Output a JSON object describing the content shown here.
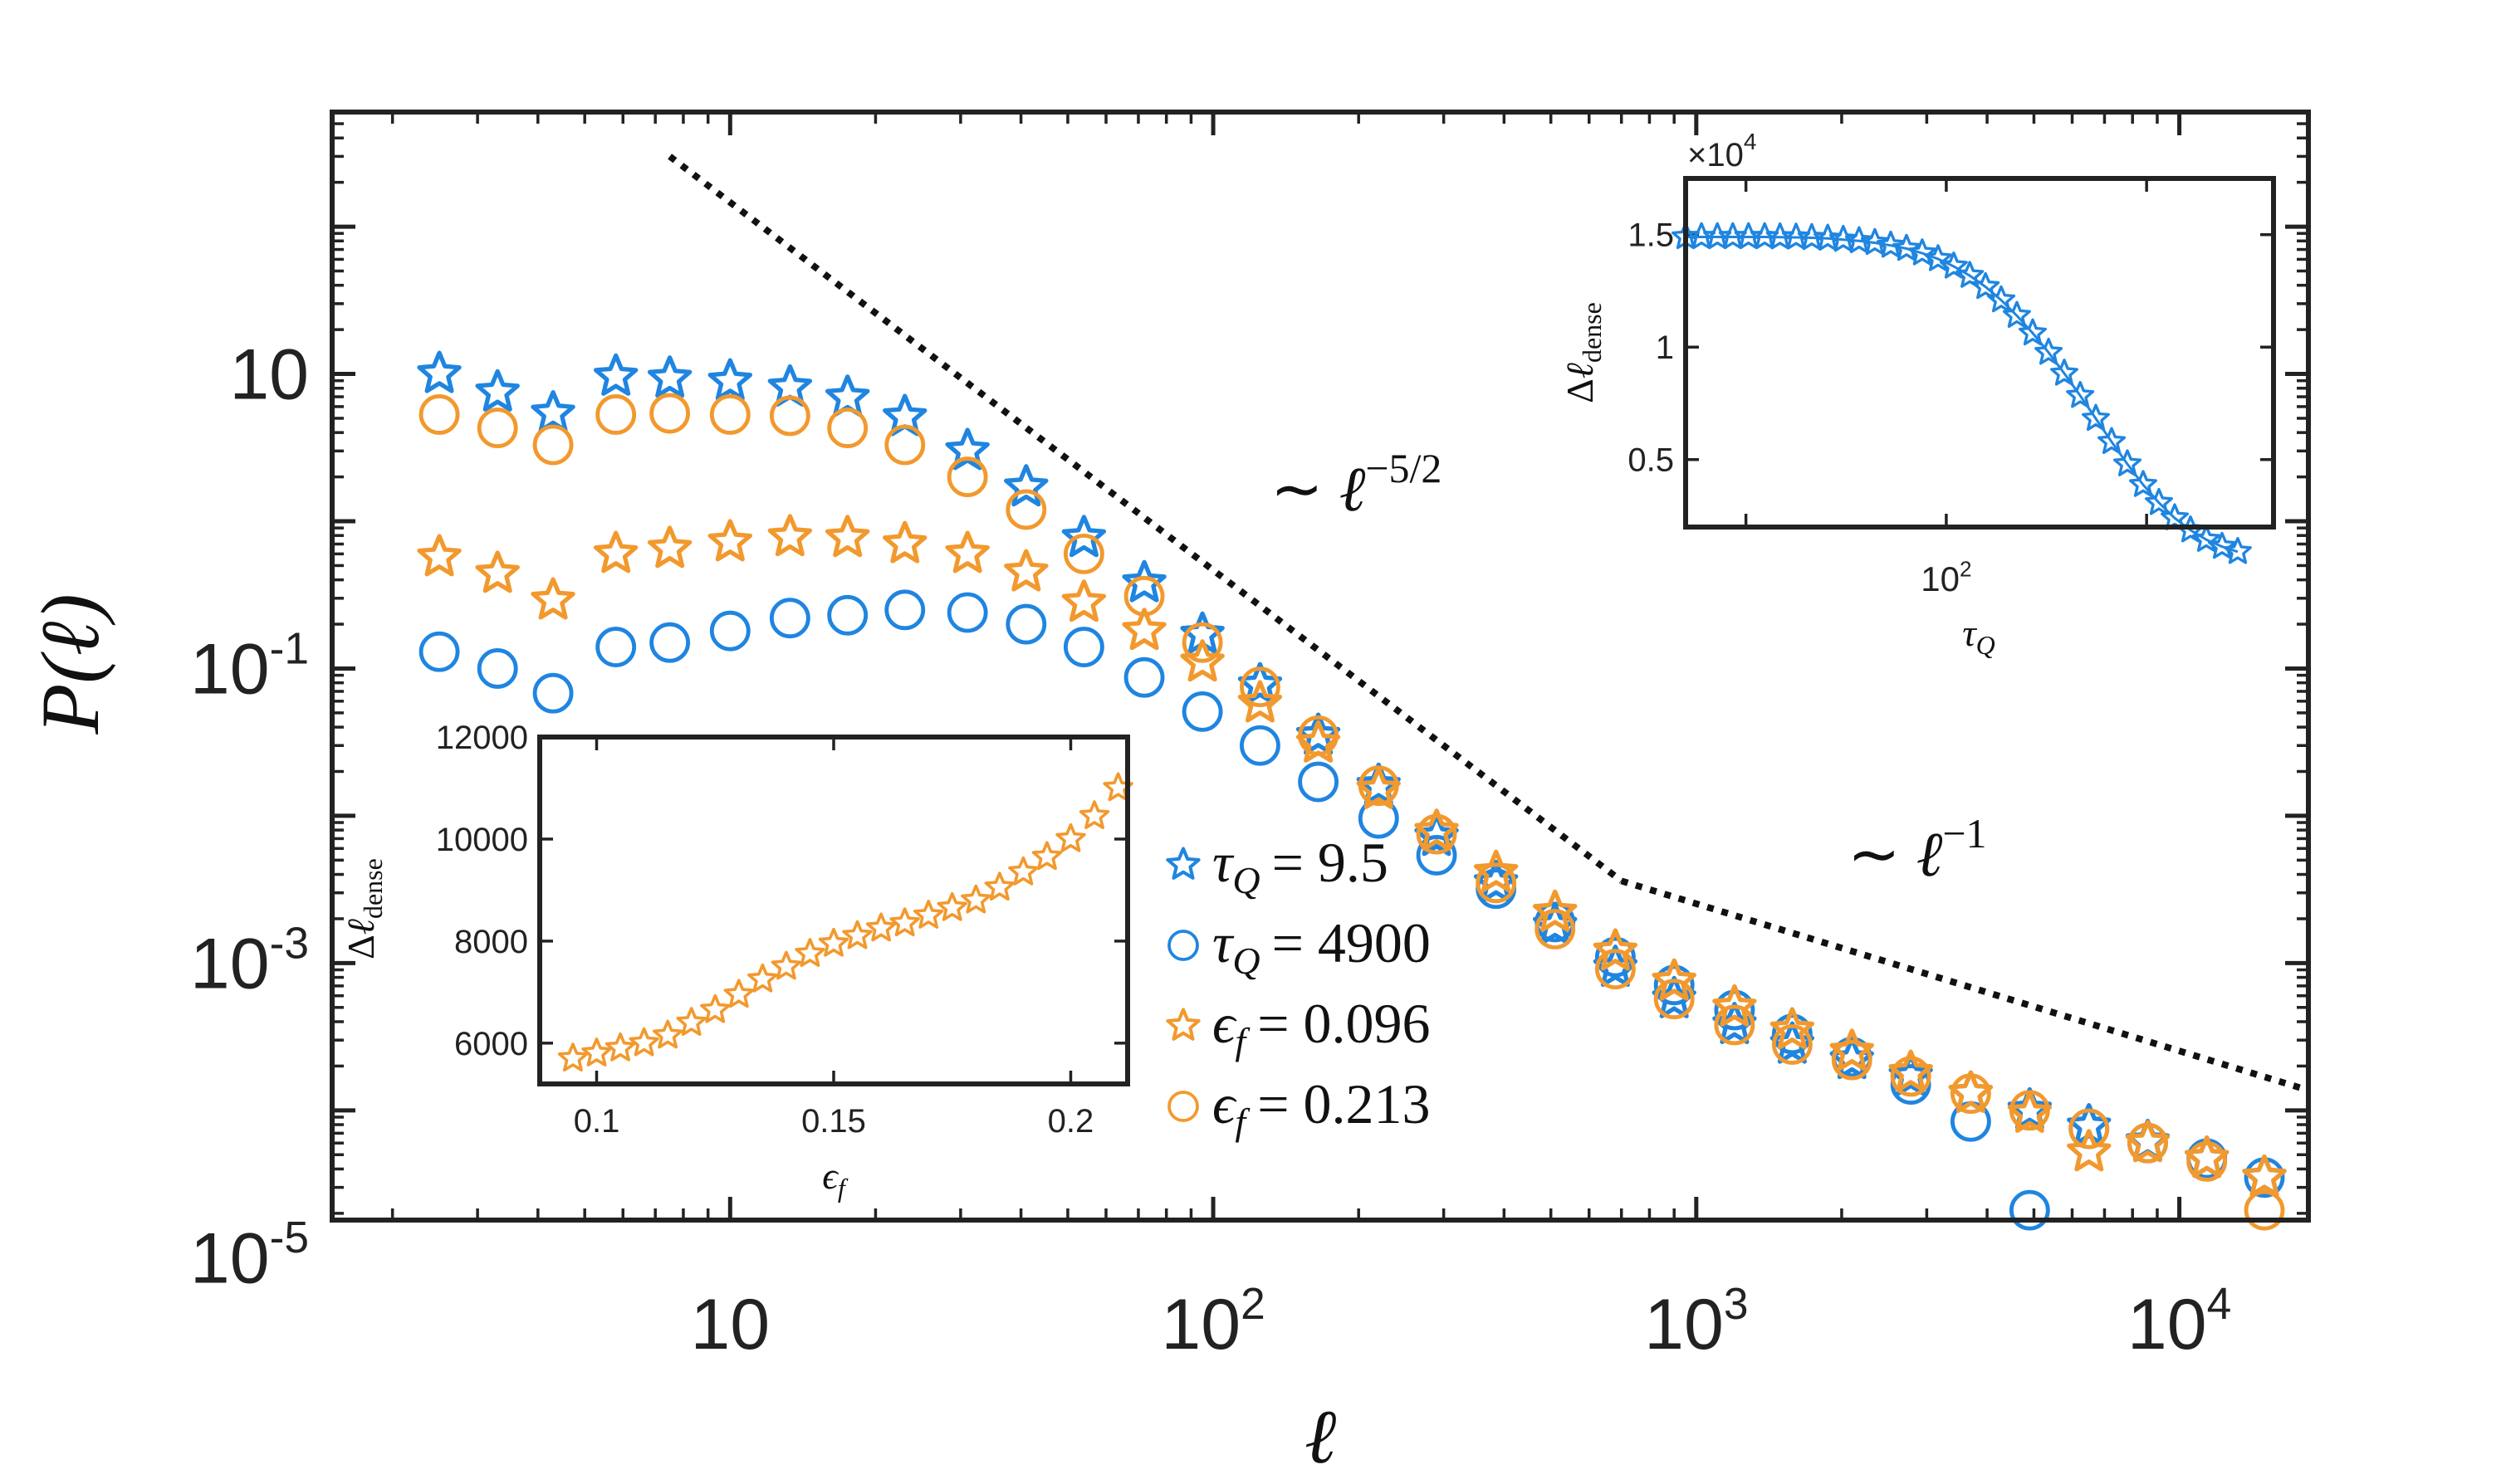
{
  "chart_data": [
    {
      "type": "scatter",
      "title": "",
      "xlabel": "ℓ",
      "ylabel": "P(ℓ)",
      "xscale": "log",
      "yscale": "log",
      "xlim": [
        1.5,
        18500
      ],
      "ylim": [
        1.8e-05,
        600
      ],
      "x_ticks": [
        {
          "value": 10,
          "base": "10",
          "exp": ""
        },
        {
          "value": 100,
          "base": "10",
          "exp": "2"
        },
        {
          "value": 1000,
          "base": "10",
          "exp": "3"
        },
        {
          "value": 10000,
          "base": "10",
          "exp": "4"
        }
      ],
      "y_ticks": [
        {
          "value": 10,
          "base": "10",
          "exp": ""
        },
        {
          "value": 0.1,
          "base": "10",
          "exp": "-1"
        },
        {
          "value": 0.001,
          "base": "10",
          "exp": "-3"
        },
        {
          "value": 1e-05,
          "base": "10",
          "exp": "-5"
        }
      ],
      "x": [
        2.5,
        3.3,
        4.3,
        5.8,
        7.5,
        10,
        13.3,
        17.5,
        23,
        31,
        41,
        54,
        72,
        95,
        125,
        165,
        220,
        290,
        385,
        510,
        680,
        900,
        1200,
        1580,
        2100,
        2780,
        3700,
        4900,
        6500,
        8600,
        11400,
        15000
      ],
      "series": [
        {
          "name": "τ_Q = 9.5",
          "marker": "star",
          "color": "#1f85e0",
          "values": [
            10,
            7.5,
            5.4,
            9.6,
            9.3,
            8.9,
            8.1,
            6.9,
            5.1,
            3.0,
            1.7,
            0.77,
            0.38,
            0.17,
            0.077,
            0.035,
            0.016,
            0.0072,
            0.0035,
            0.0018,
            0.00093,
            0.00057,
            0.00038,
            0.00028,
            0.00022,
            0.00017,
            0.00013,
            0.0001,
            7.8e-05,
            6.1e-05,
            4.7e-05,
            3.5e-05
          ]
        },
        {
          "name": "τ_Q = 4900",
          "marker": "circle",
          "color": "#1f85e0",
          "values": [
            0.13,
            0.1,
            0.068,
            0.14,
            0.15,
            0.18,
            0.22,
            0.23,
            0.25,
            0.24,
            0.2,
            0.14,
            0.087,
            0.051,
            0.03,
            0.017,
            0.0096,
            0.0054,
            0.0032,
            0.0019,
            0.0011,
            0.00071,
            0.00048,
            0.00033,
            0.00023,
            0.00015,
            8.4e-05,
            2.1e-05,
            7.5e-05,
            6e-05,
            4.7e-05,
            3.5e-05
          ]
        },
        {
          "name": "ϵ_f = 0.096",
          "marker": "star",
          "color": "#f2992e",
          "values": [
            0.57,
            0.44,
            0.29,
            0.6,
            0.65,
            0.72,
            0.78,
            0.77,
            0.7,
            0.6,
            0.45,
            0.28,
            0.18,
            0.11,
            0.058,
            0.031,
            0.015,
            0.0078,
            0.0041,
            0.0022,
            0.0012,
            0.00075,
            0.0005,
            0.00035,
            0.00025,
            0.00018,
            0.00013,
            9.5e-05,
            5.2e-05,
            6e-05,
            4.7e-05,
            3.5e-05
          ]
        },
        {
          "name": "ϵ_f = 0.213",
          "marker": "circle",
          "color": "#f2992e",
          "values": [
            5.3,
            4.3,
            3.3,
            5.3,
            5.4,
            5.3,
            5.2,
            4.3,
            3.3,
            2.0,
            1.2,
            0.6,
            0.31,
            0.15,
            0.075,
            0.035,
            0.016,
            0.0075,
            0.0035,
            0.0017,
            0.00091,
            0.00057,
            0.00038,
            0.00028,
            0.00022,
            0.00017,
            0.00013,
            0.0001,
            7.5e-05,
            6e-05,
            4.5e-05,
            2.1e-05
          ]
        }
      ],
      "reference_lines": [
        {
          "label": "∼ ℓ^-5/2",
          "base": "ℓ",
          "exp": "−5/2",
          "points": [
            [
              7.5,
              300
            ],
            [
              700,
              0.00361
            ]
          ]
        },
        {
          "label": "∼ ℓ^-1",
          "base": "ℓ",
          "exp": "−1",
          "points": [
            [
              700,
              0.00361
            ],
            [
              18500,
              0.000137
            ]
          ]
        }
      ],
      "legend": {
        "position": "lower-center",
        "entries": [
          {
            "label": "τ_Q = 9.5",
            "sym": "τ",
            "sub": "Q",
            "rhs": "= 9.5"
          },
          {
            "label": "τ_Q = 4900",
            "sym": "τ",
            "sub": "Q",
            "rhs": "= 4900"
          },
          {
            "label": "ϵ_f = 0.096",
            "sym": "ϵ",
            "sub": "f",
            "rhs": "= 0.096"
          },
          {
            "label": "ϵ_f = 0.213",
            "sym": "ϵ",
            "sub": "f",
            "rhs": "= 0.213"
          }
        ]
      }
    },
    {
      "type": "scatter",
      "inset": "top-right",
      "xlabel": "τ_Q",
      "ylabel": "Δℓ_dense",
      "xscale": "log",
      "xlim": [
        5,
        4300
      ],
      "ylim": [
        2000,
        17500
      ],
      "x_ticks": [
        {
          "value": 100,
          "base": "10",
          "exp": "2"
        }
      ],
      "y_ticks": [
        {
          "value": 5000,
          "label": "0.5"
        },
        {
          "value": 10000,
          "label": "1"
        },
        {
          "value": 15000,
          "label": "1.5"
        }
      ],
      "y_multiplier": {
        "base": "×10",
        "exp": "4"
      },
      "series": [
        {
          "name": "Δℓ_dense vs τ_Q",
          "marker": "star",
          "color": "#1f85e0",
          "x": [
            5.0,
            6.0,
            7.2,
            8.6,
            10.3,
            12.4,
            14.8,
            17.8,
            21.3,
            25.6,
            30.6,
            36.7,
            44.0,
            52.8,
            63.3,
            75.8,
            91.0,
            109,
            131,
            157,
            188,
            225,
            270,
            324,
            388,
            466,
            558,
            669,
            802,
            961,
            1152,
            1381,
            1656,
            1985,
            2380,
            2850
          ],
          "values": [
            14900,
            14900,
            14900,
            14900,
            14900,
            14900,
            14890,
            14880,
            14860,
            14830,
            14780,
            14720,
            14640,
            14520,
            14380,
            14180,
            13920,
            13590,
            13180,
            12680,
            12090,
            11400,
            10620,
            9760,
            8830,
            7840,
            6820,
            5790,
            4800,
            3880,
            3080,
            2400,
            1860,
            1440,
            1130,
            900
          ]
        }
      ]
    },
    {
      "type": "scatter",
      "inset": "bottom-left",
      "xlabel": "ϵ_f",
      "ylabel": "Δℓ_dense",
      "xlim": [
        0.088,
        0.212
      ],
      "ylim": [
        5200,
        12000
      ],
      "x_ticks": [
        {
          "value": 0.1,
          "label": "0.1"
        },
        {
          "value": 0.15,
          "label": "0.15"
        },
        {
          "value": 0.2,
          "label": "0.2"
        }
      ],
      "y_ticks": [
        {
          "value": 6000,
          "label": "6000"
        },
        {
          "value": 8000,
          "label": "8000"
        },
        {
          "value": 10000,
          "label": "10000"
        },
        {
          "value": 12000,
          "label": "12000"
        }
      ],
      "series": [
        {
          "name": "Δℓ_dense vs ϵ_f",
          "marker": "star",
          "color": "#f2992e",
          "x": [
            0.095,
            0.1,
            0.105,
            0.11,
            0.115,
            0.12,
            0.125,
            0.13,
            0.135,
            0.14,
            0.145,
            0.15,
            0.155,
            0.16,
            0.165,
            0.17,
            0.175,
            0.18,
            0.185,
            0.19,
            0.195,
            0.2,
            0.205,
            0.21
          ],
          "values": [
            5700,
            5800,
            5900,
            6000,
            6150,
            6400,
            6650,
            6950,
            7250,
            7500,
            7750,
            7950,
            8100,
            8250,
            8350,
            8500,
            8650,
            8800,
            9050,
            9350,
            9650,
            10000,
            10450,
            11000
          ]
        }
      ]
    }
  ]
}
